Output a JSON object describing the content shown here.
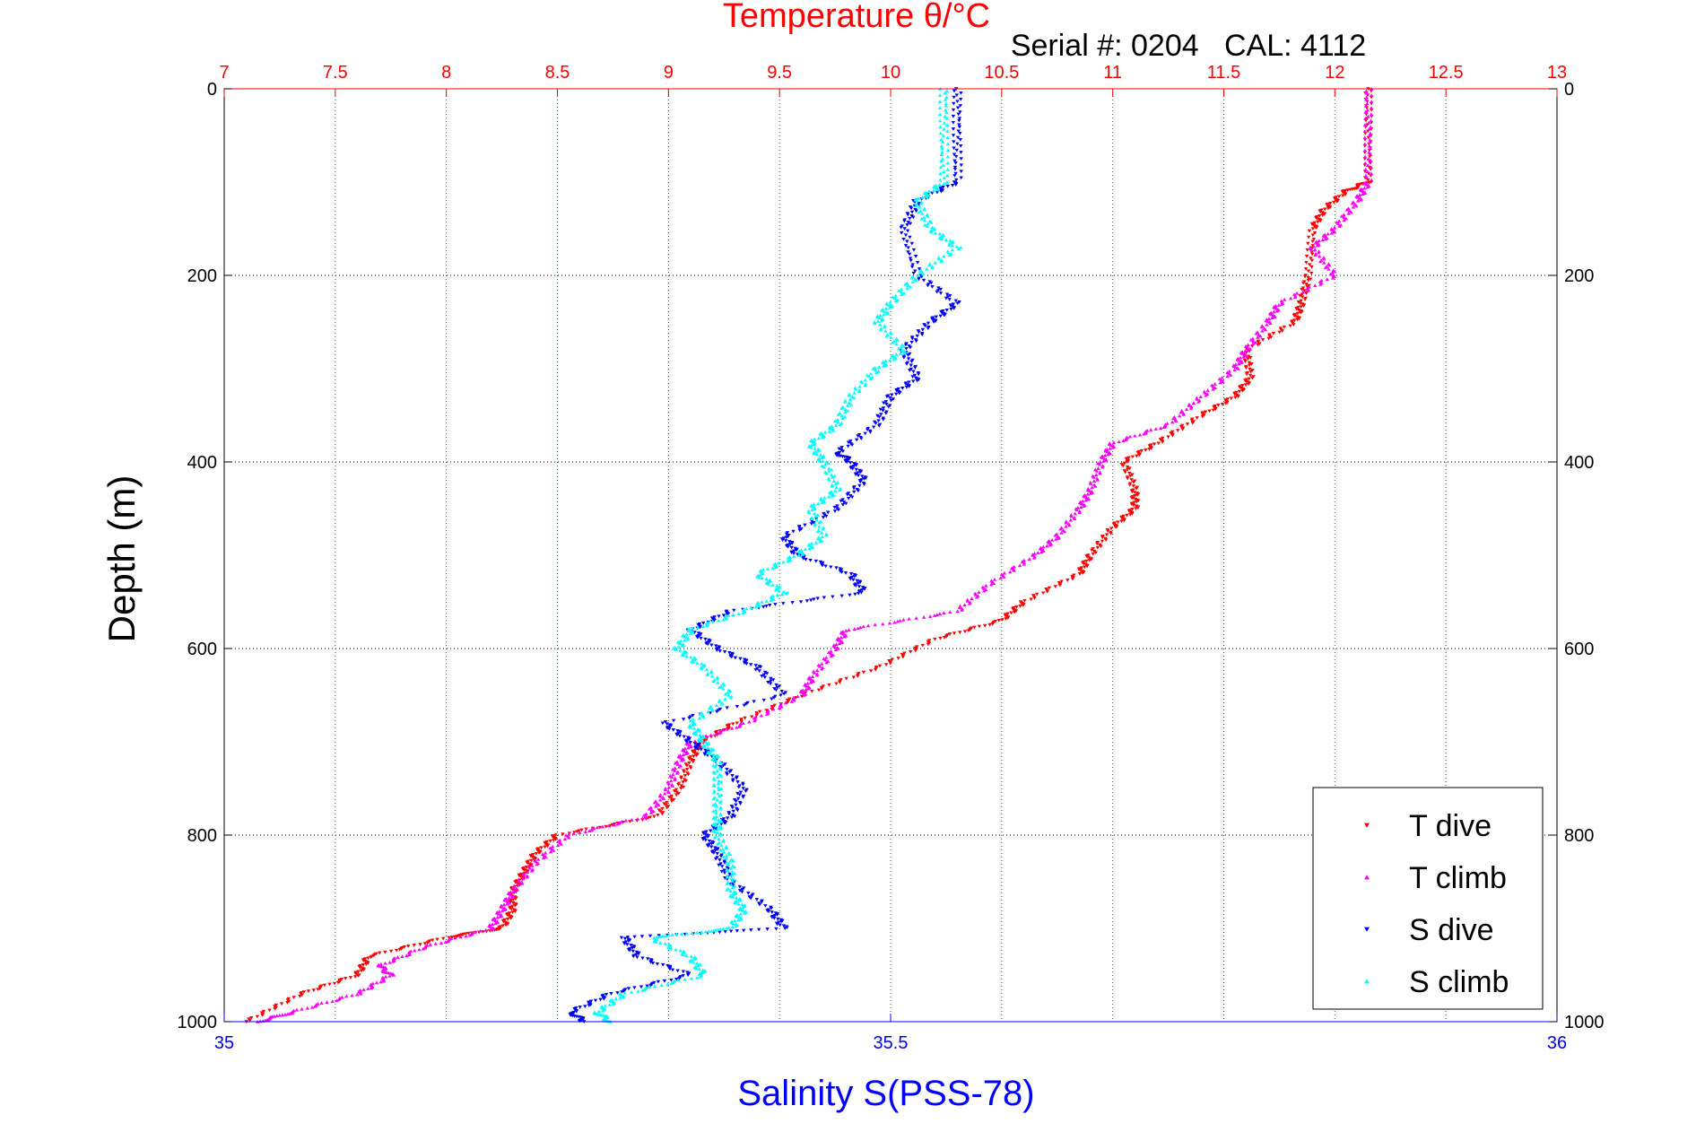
{
  "chart_data": {
    "type": "scatter",
    "title": "Temperature θ/°C",
    "subtitle": "Serial #: 0204   CAL: 4112",
    "ylabel": "Depth (m)",
    "xlabel": "Salinity S(PSS-78)",
    "temperature_axis": {
      "range": [
        7,
        13
      ],
      "ticks": [
        7,
        7.5,
        8,
        8.5,
        9,
        9.5,
        10,
        10.5,
        11,
        11.5,
        12,
        12.5,
        13
      ],
      "tick_labels": [
        "7",
        "7.5",
        "8",
        "8.5",
        "9",
        "9.5",
        "10",
        "10.5",
        "11",
        "11.5",
        "12",
        "12.5",
        "13"
      ]
    },
    "salinity_axis": {
      "range": [
        35,
        36
      ],
      "ticks": [
        35,
        35.5,
        36
      ],
      "tick_labels": [
        "35",
        "35.5",
        "36"
      ]
    },
    "depth_axis": {
      "range": [
        0,
        1000
      ],
      "reversed": true,
      "ticks": [
        0,
        200,
        400,
        600,
        800,
        1000
      ],
      "tick_labels": [
        "0",
        "200",
        "400",
        "600",
        "800",
        "1000"
      ]
    },
    "grid": true,
    "legend_position": "bottom-right",
    "series": [
      {
        "name": "T dive",
        "axis": "temperature",
        "marker": "triangle-down",
        "color": "#ff0000",
        "depth": [
          0,
          50,
          100,
          110,
          130,
          150,
          200,
          230,
          250,
          280,
          310,
          330,
          350,
          380,
          400,
          430,
          450,
          470,
          500,
          520,
          550,
          570,
          590,
          620,
          650,
          680,
          700,
          720,
          750,
          780,
          800,
          820,
          840,
          860,
          880,
          900,
          910,
          930,
          950,
          970,
          1000
        ],
        "values": [
          12.15,
          12.15,
          12.15,
          12.05,
          11.95,
          11.9,
          11.88,
          11.85,
          11.82,
          11.6,
          11.62,
          11.55,
          11.4,
          11.2,
          11.05,
          11.1,
          11.1,
          11.0,
          10.9,
          10.85,
          10.6,
          10.5,
          10.2,
          9.95,
          9.6,
          9.3,
          9.15,
          9.1,
          9.05,
          8.95,
          8.5,
          8.4,
          8.35,
          8.3,
          8.3,
          8.25,
          8.0,
          7.65,
          7.6,
          7.35,
          7.1
        ]
      },
      {
        "name": "T climb",
        "axis": "temperature",
        "marker": "triangle-up",
        "color": "#ff00ff",
        "depth": [
          0,
          50,
          100,
          120,
          150,
          170,
          200,
          230,
          250,
          280,
          300,
          330,
          360,
          380,
          400,
          430,
          450,
          480,
          500,
          530,
          560,
          580,
          600,
          630,
          650,
          680,
          700,
          720,
          750,
          780,
          800,
          830,
          860,
          880,
          900,
          920,
          940,
          950,
          970,
          990,
          1000
        ],
        "values": [
          12.15,
          12.15,
          12.15,
          12.1,
          12.0,
          11.9,
          12.0,
          11.75,
          11.7,
          11.6,
          11.55,
          11.4,
          11.25,
          11.0,
          10.95,
          10.9,
          10.85,
          10.75,
          10.65,
          10.45,
          10.3,
          9.8,
          9.75,
          9.65,
          9.6,
          9.35,
          9.1,
          9.05,
          9.0,
          8.9,
          8.55,
          8.4,
          8.3,
          8.25,
          8.2,
          7.9,
          7.7,
          7.75,
          7.6,
          7.3,
          7.15
        ]
      },
      {
        "name": "S dive",
        "axis": "salinity",
        "marker": "triangle-down",
        "color": "#0000ff",
        "depth": [
          0,
          50,
          100,
          120,
          150,
          200,
          230,
          250,
          280,
          310,
          330,
          360,
          390,
          400,
          420,
          450,
          480,
          500,
          520,
          540,
          560,
          580,
          600,
          620,
          650,
          680,
          700,
          720,
          750,
          780,
          800,
          820,
          850,
          880,
          900,
          910,
          930,
          950,
          970,
          990,
          1000
        ],
        "values": [
          35.55,
          35.55,
          35.55,
          35.52,
          35.51,
          35.52,
          35.55,
          35.53,
          35.51,
          35.52,
          35.5,
          35.49,
          35.46,
          35.47,
          35.48,
          35.46,
          35.42,
          35.43,
          35.47,
          35.48,
          35.38,
          35.35,
          35.37,
          35.4,
          35.42,
          35.33,
          35.35,
          35.37,
          35.39,
          35.38,
          35.36,
          35.37,
          35.38,
          35.41,
          35.42,
          35.3,
          35.31,
          35.35,
          35.29,
          35.26,
          35.27
        ]
      },
      {
        "name": "S climb",
        "axis": "salinity",
        "marker": "triangle-up",
        "color": "#00ffff",
        "depth": [
          0,
          50,
          100,
          120,
          150,
          170,
          200,
          230,
          250,
          280,
          300,
          330,
          360,
          380,
          400,
          430,
          450,
          480,
          500,
          520,
          540,
          560,
          580,
          600,
          620,
          650,
          680,
          700,
          720,
          750,
          780,
          800,
          830,
          860,
          880,
          900,
          910,
          930,
          950,
          970,
          990,
          1000
        ],
        "values": [
          35.54,
          35.54,
          35.54,
          35.52,
          35.53,
          35.55,
          35.52,
          35.5,
          35.49,
          35.51,
          35.49,
          35.47,
          35.46,
          35.44,
          35.45,
          35.46,
          35.44,
          35.45,
          35.43,
          35.4,
          35.42,
          35.39,
          35.35,
          35.34,
          35.36,
          35.38,
          35.35,
          35.36,
          35.37,
          35.37,
          35.37,
          35.37,
          35.38,
          35.38,
          35.39,
          35.38,
          35.32,
          35.35,
          35.36,
          35.3,
          35.28,
          35.29
        ]
      }
    ]
  }
}
